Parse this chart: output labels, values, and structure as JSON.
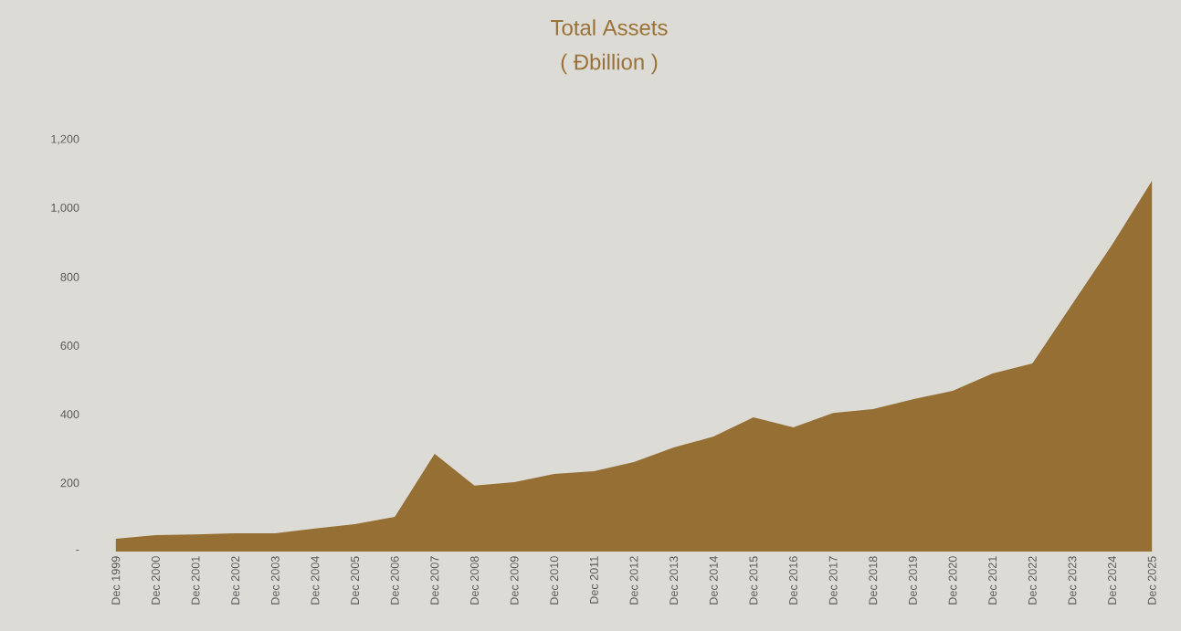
{
  "chart_data": {
    "type": "area",
    "title": "Total Assets",
    "subtitle": "( Đbillion )",
    "categories": [
      "Dec 1999",
      "Dec 2000",
      "Dec 2001",
      "Dec 2002",
      "Dec 2003",
      "Dec 2004",
      "Dec 2005",
      "Dec 2006",
      "Dec 2007",
      "Dec 2008",
      "Dec 2009",
      "Dec 2010",
      "Dec 2011",
      "Dec 2012",
      "Dec 2013",
      "Dec 2014",
      "Dec 2015",
      "Dec 2016",
      "Dec 2017",
      "Dec 2018",
      "Dec 2019",
      "Dec 2020",
      "Dec 2021",
      "Dec 2022",
      "Dec 2023",
      "Dec 2024",
      "Dec 2025"
    ],
    "values": [
      37,
      48,
      50,
      53,
      53,
      67,
      80,
      101,
      285,
      192,
      202,
      226,
      234,
      261,
      303,
      335,
      391,
      362,
      404,
      415,
      444,
      468,
      519,
      548,
      721,
      894,
      1080
    ],
    "color": "#956f33",
    "ylim": [
      0,
      1200
    ],
    "yticks": [
      {
        "value": 0,
        "label": "-"
      },
      200,
      400,
      600,
      800,
      {
        "value": 1000,
        "label": "1,000"
      },
      {
        "value": 1200,
        "label": "1,200"
      }
    ]
  }
}
